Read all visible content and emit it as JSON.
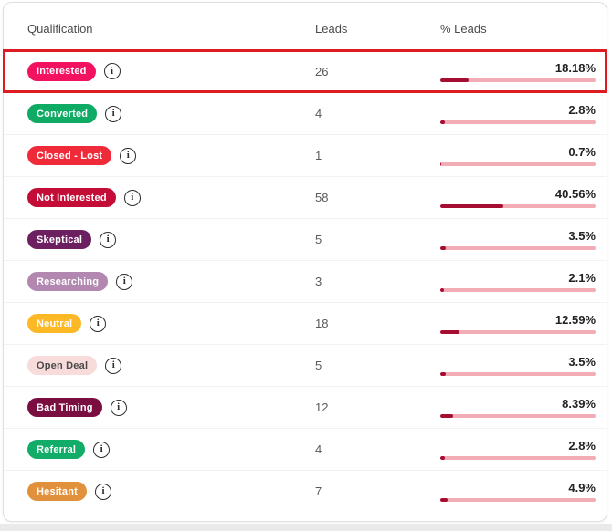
{
  "icons": {
    "info": "i"
  },
  "colors": {
    "selection_border": "#DE1B21",
    "bar_track": "#F2ACB6",
    "bar_fill": "#A50D31"
  },
  "table": {
    "columns": {
      "qualification": "Qualification",
      "leads": "Leads",
      "pct_leads": "% Leads"
    },
    "rows": [
      {
        "label": "Interested",
        "badge_bg": "#F2125F",
        "badge_fg": "#FFFFFF",
        "leads": "26",
        "pct": "18.18%",
        "selected": true
      },
      {
        "label": "Converted",
        "badge_bg": "#0FAA63",
        "badge_fg": "#FFFFFF",
        "leads": "4",
        "pct": "2.8%",
        "selected": false
      },
      {
        "label": "Closed - Lost",
        "badge_bg": "#F02B39",
        "badge_fg": "#FFFFFF",
        "leads": "1",
        "pct": "0.7%",
        "selected": false
      },
      {
        "label": "Not Interested",
        "badge_bg": "#C30D37",
        "badge_fg": "#FFFFFF",
        "leads": "58",
        "pct": "40.56%",
        "selected": false
      },
      {
        "label": "Skeptical",
        "badge_bg": "#6C2060",
        "badge_fg": "#FFFFFF",
        "leads": "5",
        "pct": "3.5%",
        "selected": false
      },
      {
        "label": "Researching",
        "badge_bg": "#B287B0",
        "badge_fg": "#FFFFFF",
        "leads": "3",
        "pct": "2.1%",
        "selected": false
      },
      {
        "label": "Neutral",
        "badge_bg": "#FDB826",
        "badge_fg": "#FFFFFF",
        "leads": "18",
        "pct": "12.59%",
        "selected": false
      },
      {
        "label": "Open Deal",
        "badge_bg": "#F8DBDB",
        "badge_fg": "#4A4A4A",
        "leads": "5",
        "pct": "3.5%",
        "selected": false
      },
      {
        "label": "Bad Timing",
        "badge_bg": "#7B0E40",
        "badge_fg": "#FFFFFF",
        "leads": "12",
        "pct": "8.39%",
        "selected": false
      },
      {
        "label": "Referral",
        "badge_bg": "#11AC67",
        "badge_fg": "#FFFFFF",
        "leads": "4",
        "pct": "2.8%",
        "selected": false
      },
      {
        "label": "Hesitant",
        "badge_bg": "#E1913C",
        "badge_fg": "#FFFFFF",
        "leads": "7",
        "pct": "4.9%",
        "selected": false
      }
    ]
  }
}
